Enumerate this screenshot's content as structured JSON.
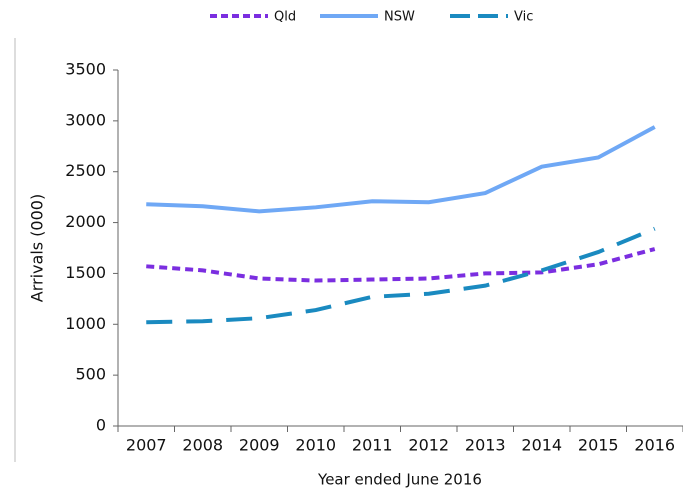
{
  "chart_data": {
    "type": "line",
    "x_label": "Year ended June 2016",
    "y_label": "Arrivals (000)",
    "categories": [
      "2007",
      "2008",
      "2009",
      "2010",
      "2011",
      "2012",
      "2013",
      "2014",
      "2015",
      "2016"
    ],
    "series": [
      {
        "name": "Qld",
        "color": "#7b2ee0",
        "dash": "8,5",
        "values": [
          1570,
          1530,
          1450,
          1430,
          1440,
          1450,
          1500,
          1510,
          1590,
          1740
        ]
      },
      {
        "name": "NSW",
        "color": "#6fa8f5",
        "dash": "none",
        "values": [
          2180,
          2160,
          2110,
          2150,
          2210,
          2200,
          2290,
          2550,
          2640,
          2940
        ]
      },
      {
        "name": "Vic",
        "color": "#1a8ac0",
        "dash": "26,14",
        "values": [
          1020,
          1030,
          1060,
          1140,
          1270,
          1300,
          1380,
          1530,
          1710,
          1940
        ]
      }
    ],
    "ylim": [
      0,
      3500
    ],
    "yticks": [
      0,
      500,
      1000,
      1500,
      2000,
      2500,
      3000,
      3500
    ],
    "legend": "top",
    "grid": false
  }
}
